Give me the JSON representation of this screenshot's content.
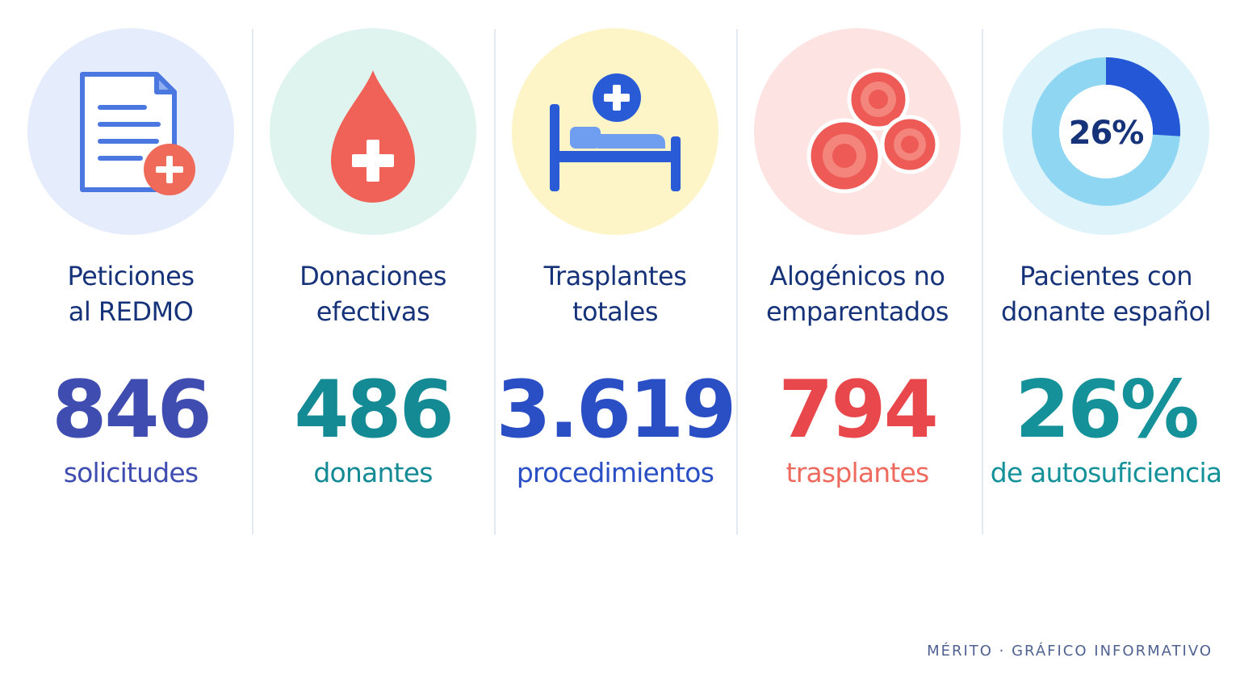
{
  "stats": [
    {
      "title_line1": "Peticiones",
      "title_line2": "al REDMO",
      "value": "846",
      "unit": "solicitudes",
      "icon": "document-plus-icon",
      "circle_color": "#e5ecfb",
      "value_color": "#3f4db0",
      "unit_color": "#3f4db0"
    },
    {
      "title_line1": "Donaciones",
      "title_line2": "efectivas",
      "value": "486",
      "unit": "donantes",
      "icon": "blood-drop-plus-icon",
      "circle_color": "#dff4ee",
      "value_color": "#138a94",
      "unit_color": "#138a94"
    },
    {
      "title_line1": "Trasplantes",
      "title_line2": "totales",
      "value": "3.619",
      "unit": "procedimientos",
      "icon": "hospital-bed-icon",
      "circle_color": "#fdf4c8",
      "value_color": "#2a4fc4",
      "unit_color": "#2a4fc4"
    },
    {
      "title_line1": "Alogénicos no",
      "title_line2": "emparentados",
      "value": "794",
      "unit": "trasplantes",
      "icon": "blood-cells-icon",
      "circle_color": "#fde3e1",
      "value_color": "#e8484c",
      "unit_color": "#ee6a5e"
    },
    {
      "title_line1": "Pacientes con",
      "title_line2": "donante español",
      "value": "26%",
      "unit": "de autosuficiencia",
      "icon": "donut-percentage-icon",
      "icon_label": "26%",
      "donut_fraction": 0.26,
      "circle_color": "#dff3fb",
      "value_color": "#149199",
      "unit_color": "#149199"
    }
  ],
  "footer": "MÉRITO · GRÁFICO INFORMATIVO"
}
